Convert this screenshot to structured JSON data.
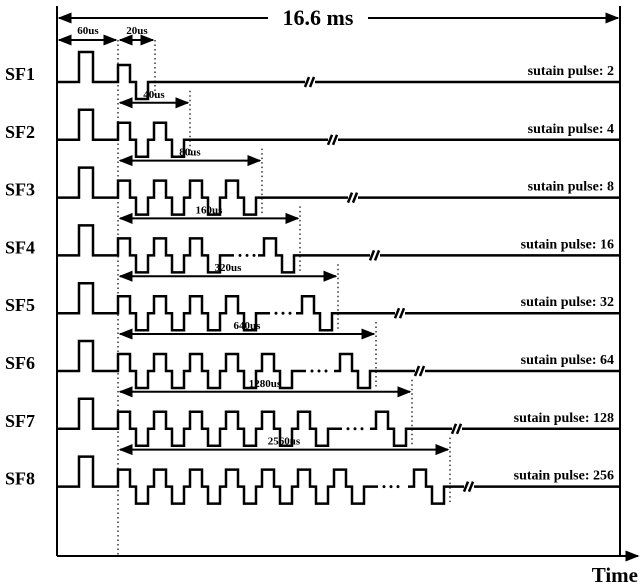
{
  "frame_label": "16.6 ms",
  "axis_label": "Time",
  "address_label": "60us",
  "gap_label": "20us",
  "rows": [
    {
      "label": "SF1",
      "pulse_label": "sutain pulse: 2"
    },
    {
      "label": "SF2",
      "duration": "40us",
      "pulse_label": "sutain pulse: 4"
    },
    {
      "label": "SF3",
      "duration": "80us",
      "pulse_label": "sutain pulse: 8"
    },
    {
      "label": "SF4",
      "duration": "160us",
      "pulse_label": "sutain pulse: 16"
    },
    {
      "label": "SF5",
      "duration": "320us",
      "pulse_label": "sutain pulse: 32"
    },
    {
      "label": "SF6",
      "duration": "640us",
      "pulse_label": "sutain pulse: 64"
    },
    {
      "label": "SF7",
      "duration": "1280us",
      "pulse_label": "sutain pulse: 128"
    },
    {
      "label": "SF8",
      "duration": "2560us",
      "pulse_label": "sutain pulse: 256"
    }
  ]
}
